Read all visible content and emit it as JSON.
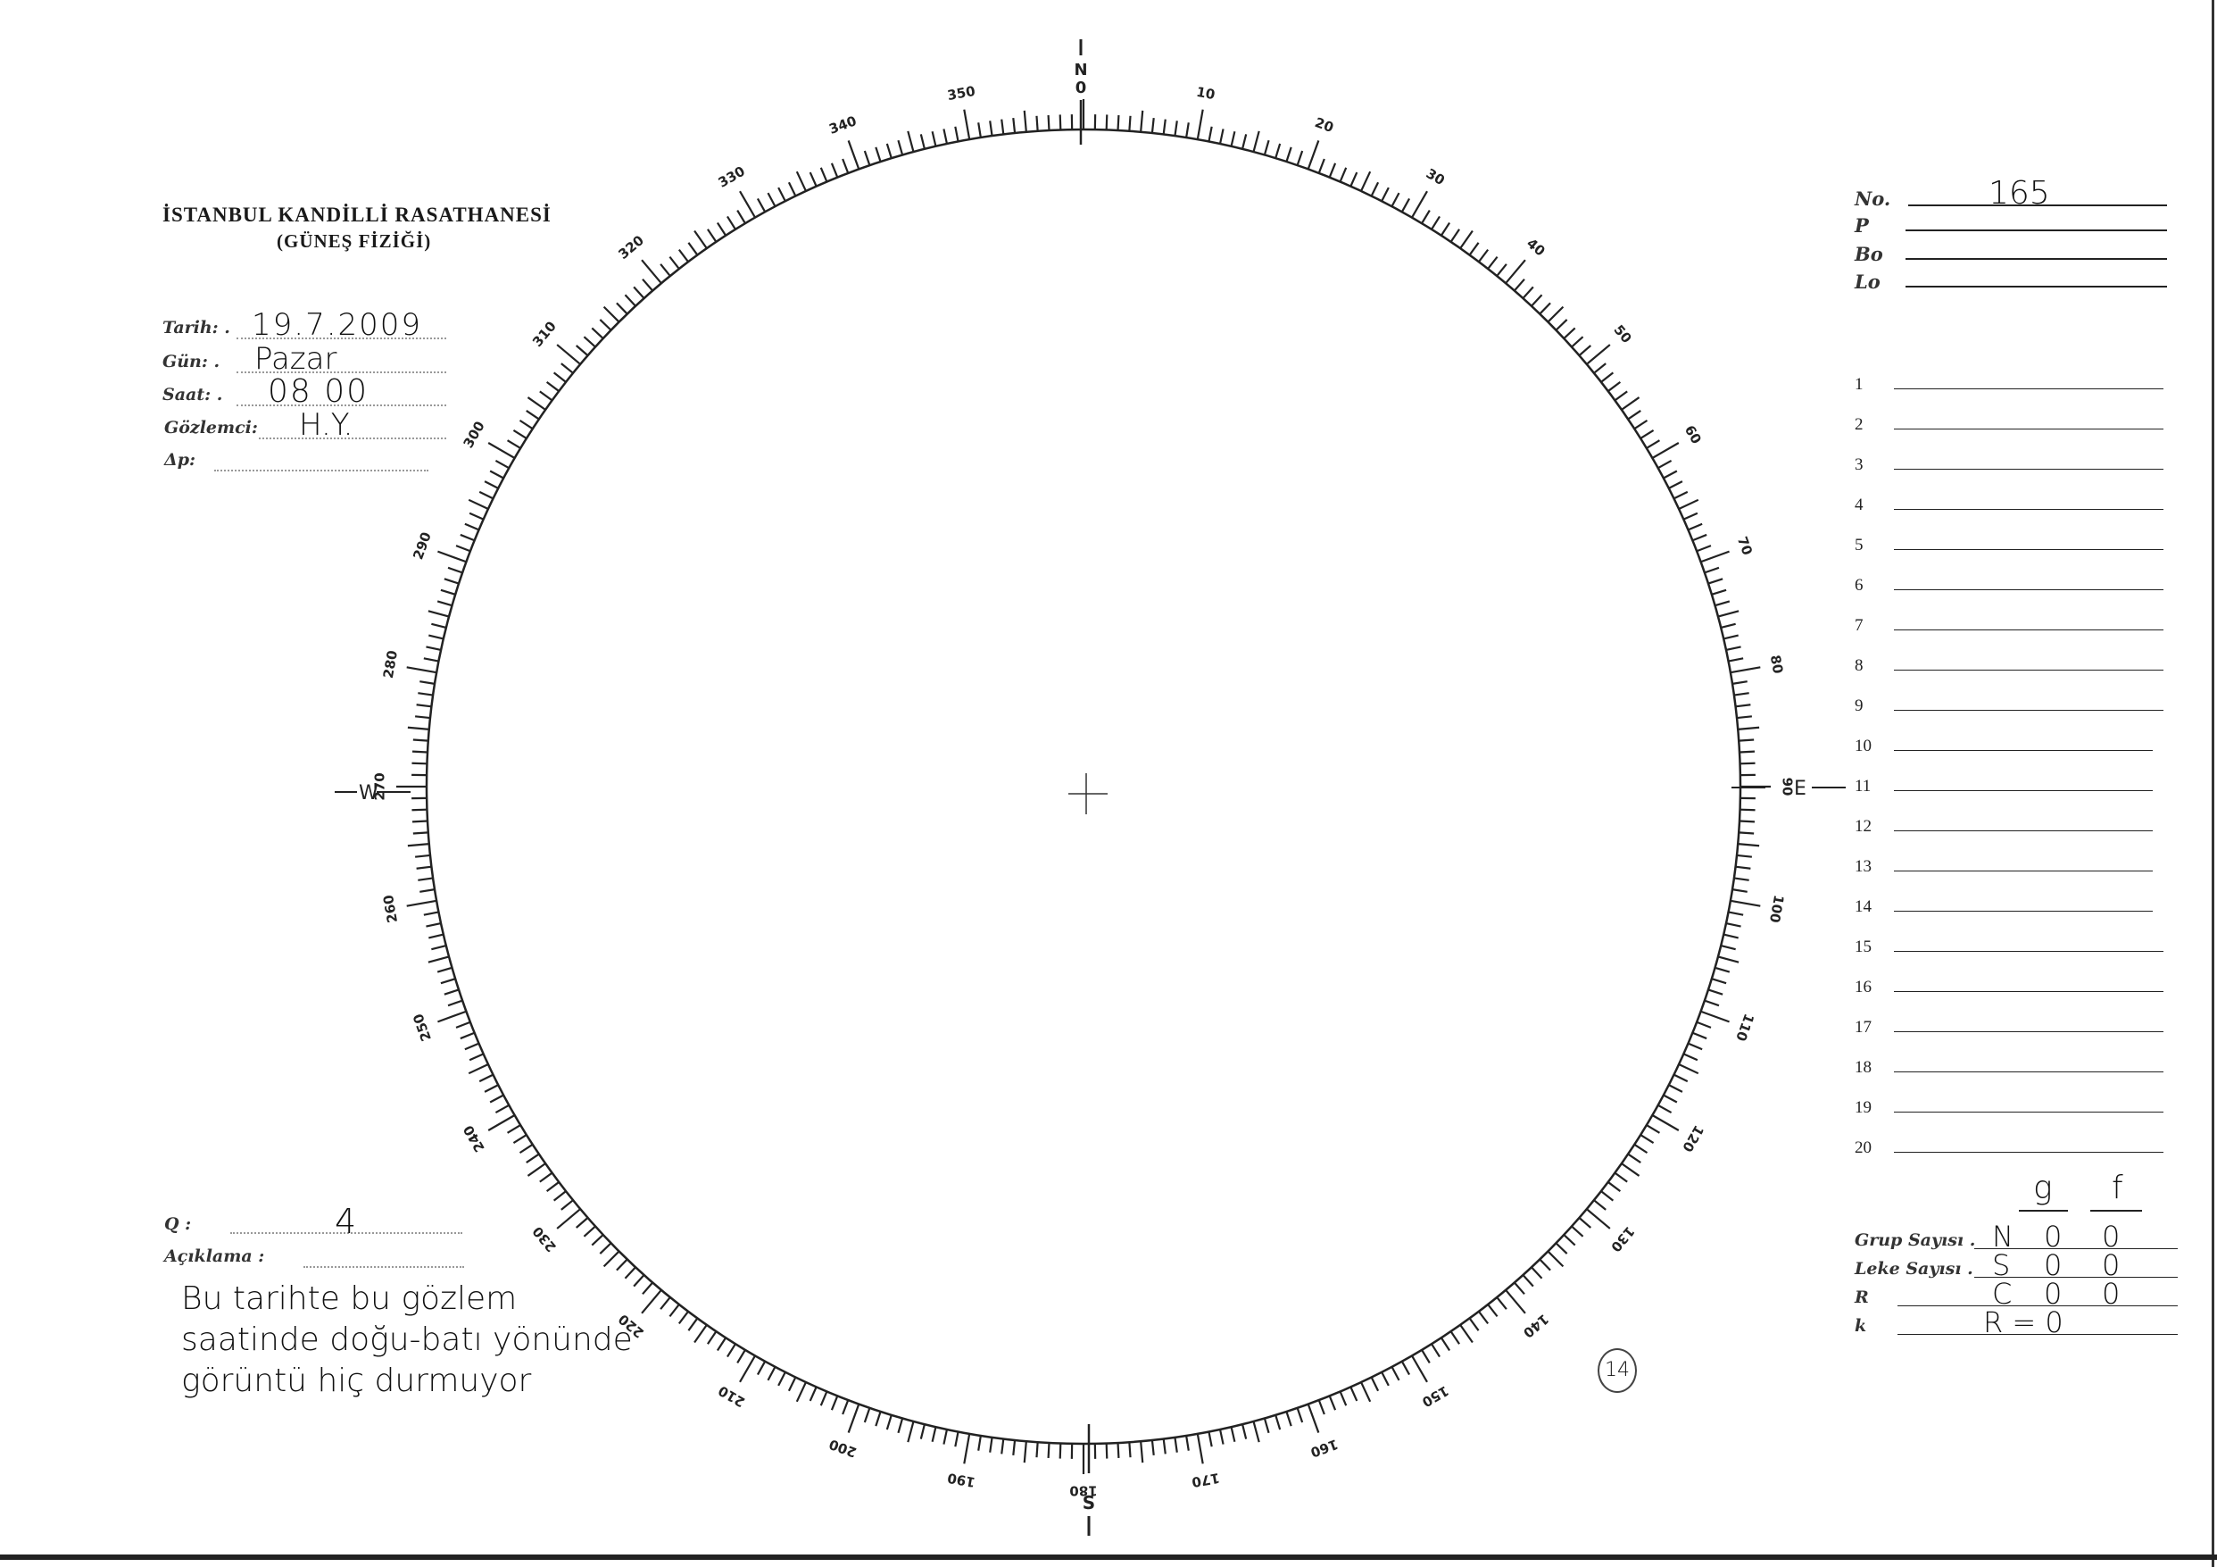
{
  "header": {
    "institution": "İSTANBUL KANDİLLİ RASATHANESİ",
    "department": "(GÜNEŞ FİZİĞİ)"
  },
  "form": {
    "fields": [
      {
        "label": "Tarih: .",
        "value": "19.7.2009"
      },
      {
        "label": "Gün: .",
        "value": "Pazar"
      },
      {
        "label": "Saat: .",
        "value": "08 00"
      },
      {
        "label": "Gözlemci:",
        "value": "H.Y."
      },
      {
        "label": "Δp:",
        "value": ""
      }
    ],
    "q": {
      "label": "Q :",
      "value": "4"
    },
    "aciklama": {
      "label": "Açıklama :",
      "lines": [
        "Bu tarihte bu gözlem",
        "saatinde doğu-batı yönünde",
        "görüntü hiç durmuyor"
      ]
    }
  },
  "right_panel": {
    "fields": [
      {
        "label": "No.",
        "value": "165"
      },
      {
        "label": "P",
        "value": ""
      },
      {
        "label": "Bo",
        "value": ""
      },
      {
        "label": "Lo",
        "value": ""
      }
    ],
    "rows": [
      "1",
      "2",
      "3",
      "4",
      "5",
      "6",
      "7",
      "8",
      "9",
      "10",
      "11",
      "12",
      "13",
      "14",
      "15",
      "16",
      "17",
      "18",
      "19",
      "20"
    ],
    "counts": {
      "col_headers": [
        "g",
        "f"
      ],
      "rows": [
        {
          "label": "Grup Sayısı .",
          "hemisphere": "N",
          "g": "0",
          "f": "0"
        },
        {
          "label": "Leke Sayısı .",
          "hemisphere": "S",
          "g": "0",
          "f": "0"
        },
        {
          "label": "R",
          "hemisphere": "C",
          "g": "0",
          "f": "0"
        },
        {
          "label": "k",
          "hemisphere": "R = 0",
          "g": "",
          "f": ""
        }
      ]
    }
  },
  "dial": {
    "north": "N",
    "south": "S",
    "east": "E",
    "west": "W",
    "degree_labels": [
      "10",
      "20",
      "30",
      "40",
      "50",
      "60",
      "70",
      "80",
      "90",
      "100",
      "110",
      "120",
      "130",
      "140",
      "150",
      "160",
      "170",
      "180",
      "190",
      "200",
      "210",
      "220",
      "230",
      "240",
      "250",
      "260",
      "270",
      "280",
      "290",
      "300",
      "310",
      "320",
      "330",
      "340",
      "350"
    ]
  },
  "page_mark": "14"
}
